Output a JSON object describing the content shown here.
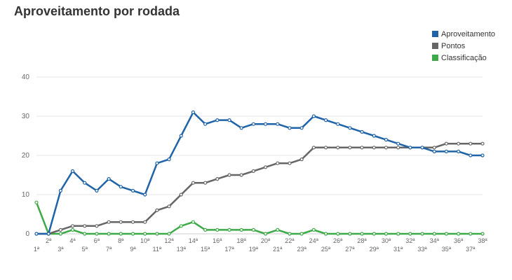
{
  "chart_data": {
    "type": "line",
    "title": "Aproveitamento por rodada",
    "xlabel": "",
    "ylabel": "",
    "ylim": [
      0,
      40
    ],
    "yticks": [
      0,
      10,
      20,
      30,
      40
    ],
    "grid": true,
    "legend_position": "top-right",
    "categories": [
      "1ª",
      "2ª",
      "3ª",
      "4ª",
      "5ª",
      "6ª",
      "7ª",
      "8ª",
      "9ª",
      "10ª",
      "11ª",
      "12ª",
      "13ª",
      "14ª",
      "15ª",
      "16ª",
      "17ª",
      "18ª",
      "19ª",
      "20ª",
      "21ª",
      "22ª",
      "23ª",
      "24ª",
      "25ª",
      "26ª",
      "27ª",
      "28ª",
      "29ª",
      "30ª",
      "31ª",
      "32ª",
      "33ª",
      "34ª",
      "35ª",
      "36ª",
      "37ª",
      "38ª"
    ],
    "series": [
      {
        "name": "Aproveitamento",
        "color": "#1f63a8",
        "values": [
          0,
          0,
          11,
          16,
          13,
          11,
          14,
          12,
          11,
          10,
          18,
          19,
          25,
          31,
          28,
          29,
          29,
          27,
          28,
          28,
          28,
          27,
          27,
          30,
          29,
          28,
          27,
          26,
          25,
          24,
          23,
          22,
          22,
          21,
          21,
          21,
          20,
          20
        ]
      },
      {
        "name": "Pontos",
        "color": "#666666",
        "values": [
          0,
          0,
          1,
          2,
          2,
          2,
          3,
          3,
          3,
          3,
          6,
          7,
          10,
          13,
          13,
          14,
          15,
          15,
          16,
          17,
          18,
          18,
          19,
          22,
          22,
          22,
          22,
          22,
          22,
          22,
          22,
          22,
          22,
          22,
          23,
          23,
          23,
          23
        ]
      },
      {
        "name": "Classificação",
        "color": "#3daa48",
        "values": [
          8,
          0,
          0,
          1,
          0,
          0,
          0,
          0,
          0,
          0,
          0,
          0,
          2,
          3,
          1,
          1,
          1,
          1,
          1,
          0,
          1,
          0,
          0,
          1,
          0,
          0,
          0,
          0,
          0,
          0,
          0,
          0,
          0,
          0,
          0,
          0,
          0,
          0
        ]
      }
    ]
  }
}
